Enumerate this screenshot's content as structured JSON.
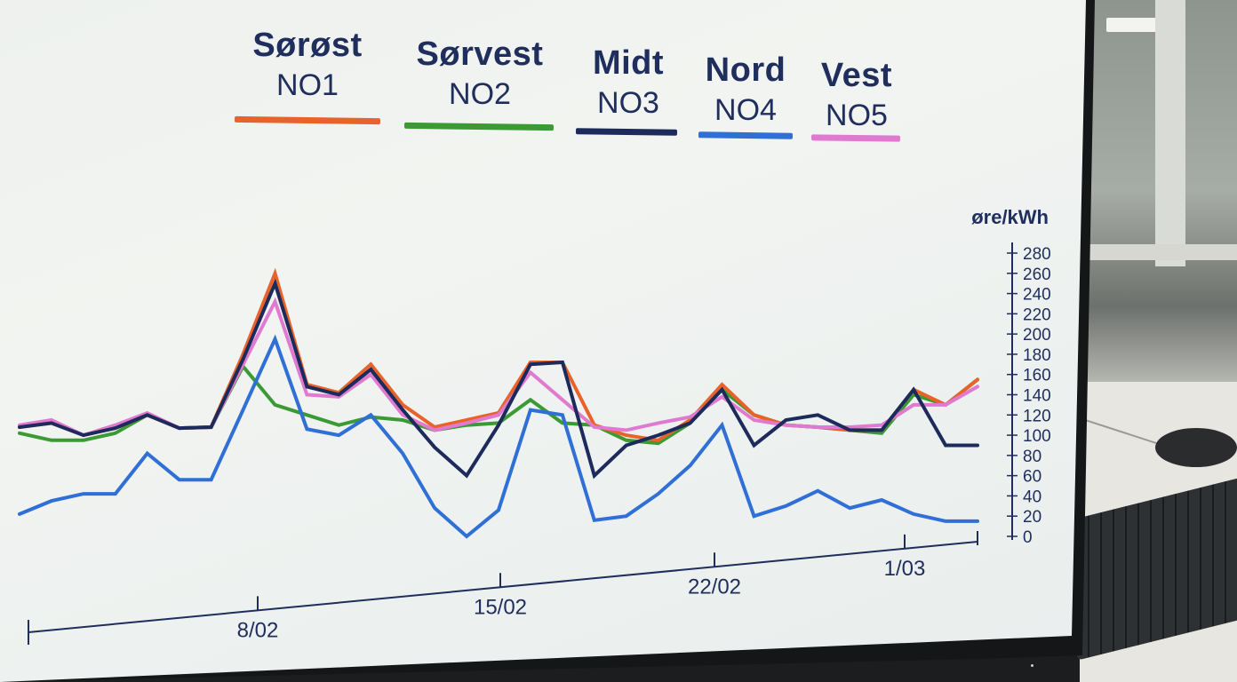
{
  "legend": [
    {
      "region": "Sørøst",
      "code": "NO1",
      "color": "#e8632a"
    },
    {
      "region": "Sørvest",
      "code": "NO2",
      "color": "#3c9a35"
    },
    {
      "region": "Midt",
      "code": "NO3",
      "color": "#1c2a5c"
    },
    {
      "region": "Nord",
      "code": "NO4",
      "color": "#2f6fd6"
    },
    {
      "region": "Vest",
      "code": "NO5",
      "color": "#e07ad0"
    }
  ],
  "chart_data": {
    "type": "line",
    "unit_label": "øre/kWh",
    "ylim": [
      0,
      280
    ],
    "yticks": [
      "0",
      "20",
      "40",
      "60",
      "80",
      "100",
      "120",
      "140",
      "160",
      "180",
      "200",
      "220",
      "240",
      "260",
      "280"
    ],
    "xtick_labels": [
      "8/02",
      "15/02",
      "22/02",
      "1/03"
    ],
    "x": [
      "1/02",
      "2/02",
      "3/02",
      "4/02",
      "5/02",
      "6/02",
      "7/02",
      "8/02",
      "9/02",
      "10/02",
      "11/02",
      "12/02",
      "13/02",
      "14/02",
      "15/02",
      "16/02",
      "17/02",
      "18/02",
      "19/02",
      "20/02",
      "21/02",
      "22/02",
      "23/02",
      "24/02",
      "25/02",
      "26/02",
      "27/02",
      "28/02",
      "1/03",
      "2/03",
      "3/03"
    ],
    "series": [
      {
        "name": "NO1",
        "color": "#e8632a",
        "values": [
          108,
          112,
          100,
          107,
          120,
          107,
          108,
          180,
          260,
          150,
          142,
          170,
          130,
          108,
          115,
          122,
          172,
          172,
          110,
          100,
          95,
          115,
          150,
          120,
          110,
          108,
          105,
          105,
          145,
          130,
          155
        ]
      },
      {
        "name": "NO2",
        "color": "#3c9a35",
        "values": [
          102,
          95,
          95,
          102,
          120,
          107,
          108,
          168,
          130,
          120,
          110,
          118,
          115,
          105,
          110,
          112,
          135,
          112,
          110,
          95,
          92,
          112,
          145,
          120,
          110,
          108,
          105,
          102,
          140,
          130,
          155
        ]
      },
      {
        "name": "NO3",
        "color": "#1c2a5c",
        "values": [
          108,
          112,
          100,
          107,
          120,
          107,
          108,
          175,
          250,
          148,
          140,
          165,
          125,
          88,
          60,
          110,
          170,
          172,
          60,
          90,
          100,
          112,
          145,
          90,
          115,
          120,
          105,
          105,
          145,
          90,
          90
        ]
      },
      {
        "name": "NO4",
        "color": "#2f6fd6",
        "values": [
          22,
          35,
          42,
          42,
          82,
          56,
          56,
          125,
          195,
          106,
          100,
          120,
          82,
          28,
          0,
          26,
          125,
          120,
          16,
          20,
          42,
          70,
          110,
          20,
          30,
          45,
          28,
          36,
          22,
          15,
          15
        ]
      },
      {
        "name": "NO5",
        "color": "#e07ad0",
        "values": [
          110,
          115,
          100,
          110,
          122,
          107,
          108,
          170,
          232,
          140,
          138,
          160,
          120,
          105,
          112,
          120,
          162,
          135,
          108,
          105,
          112,
          118,
          138,
          115,
          110,
          108,
          108,
          110,
          130,
          130,
          148
        ]
      }
    ]
  }
}
